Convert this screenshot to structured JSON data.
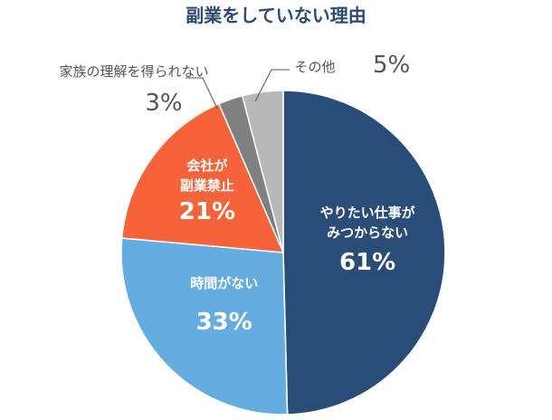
{
  "chart_data": {
    "type": "pie",
    "title": "副業をしていない理由",
    "unit": "%",
    "slices": [
      {
        "label": "やりたい仕事が\nみつからない",
        "value": 61,
        "value_label": "61%",
        "color": "#2a4c78"
      },
      {
        "label": "時間がない",
        "value": 33,
        "value_label": "33%",
        "color": "#65ace0"
      },
      {
        "label": "会社が\n副業禁止",
        "value": 21,
        "value_label": "21%",
        "color": "#f4633a"
      },
      {
        "label": "家族の理解を得られない",
        "value": 3,
        "value_label": "3%",
        "color": "#808080"
      },
      {
        "label": "その他",
        "value": 5,
        "value_label": "5%",
        "color": "#b8b8b8"
      }
    ],
    "start_angle_deg": 0,
    "direction": "clockwise",
    "legend": "none"
  }
}
